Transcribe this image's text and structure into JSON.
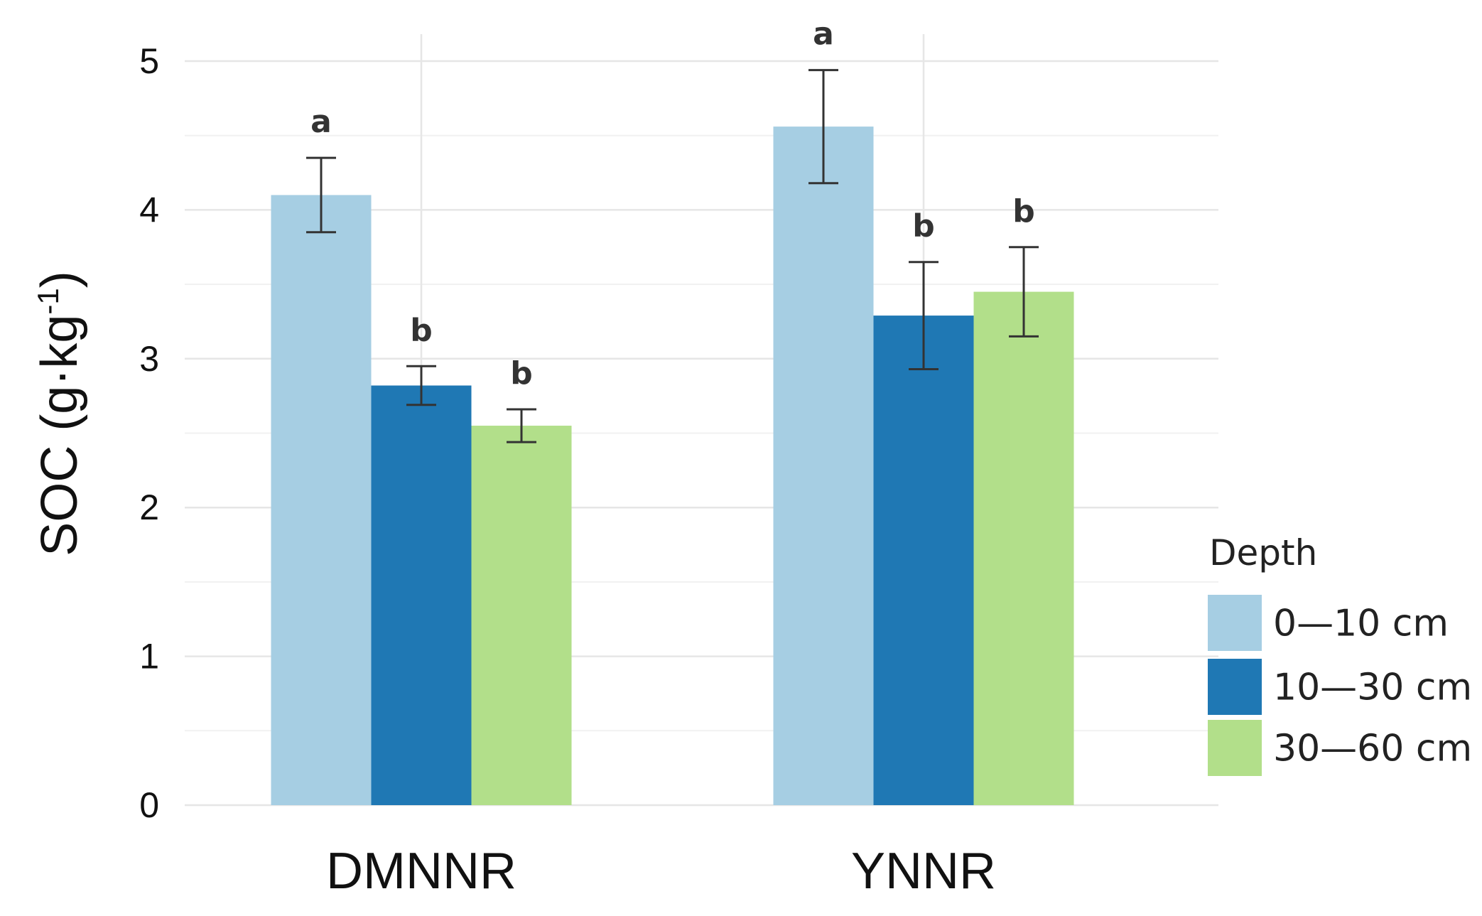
{
  "chart_data": {
    "type": "bar",
    "categories": [
      "DMNNR",
      "YNNR"
    ],
    "series": [
      {
        "name": "0—10 cm",
        "color": "#a6cee3",
        "values": [
          4.1,
          4.56
        ],
        "errors": [
          0.25,
          0.38
        ],
        "sig": [
          "a",
          "a"
        ]
      },
      {
        "name": "10—30 cm",
        "color": "#1f78b4",
        "values": [
          2.82,
          3.29
        ],
        "errors": [
          0.13,
          0.36
        ],
        "sig": [
          "b",
          "b"
        ]
      },
      {
        "name": "30—60 cm",
        "color": "#b2df8a",
        "values": [
          2.55,
          3.45
        ],
        "errors": [
          0.11,
          0.3
        ],
        "sig": [
          "b",
          "b"
        ]
      }
    ],
    "ylim": [
      0,
      5
    ],
    "yticks": [
      "0",
      "1",
      "2",
      "3",
      "4",
      "5"
    ],
    "ylabel": "SOC (g·kg",
    "ylabel_superscript": "-1",
    "ylabel_close": ")",
    "xlabel": "",
    "legend": {
      "title": "Depth",
      "position": "right"
    },
    "grid": true
  }
}
